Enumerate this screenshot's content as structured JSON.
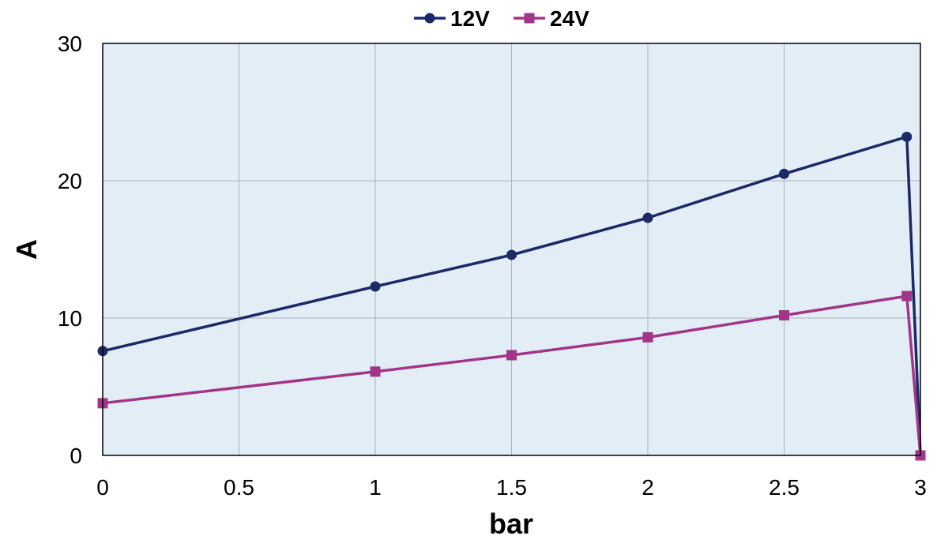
{
  "chart_data": {
    "type": "line",
    "title": "",
    "xlabel": "bar",
    "ylabel": "A",
    "xlim": [
      0,
      3
    ],
    "ylim": [
      0,
      30
    ],
    "x_ticks": [
      0,
      0.5,
      1,
      1.5,
      2,
      2.5,
      3
    ],
    "y_ticks": [
      0,
      10,
      20,
      30
    ],
    "x_tick_labels": [
      "0",
      "0.5",
      "1",
      "1.5",
      "2",
      "2.5",
      "3"
    ],
    "y_tick_labels": [
      "0",
      "10",
      "20",
      "30"
    ],
    "grid": true,
    "legend_position": "top-center",
    "plot_background": "#e2edf5",
    "series": [
      {
        "name": "12V",
        "color": "#1b2a66",
        "marker": "circle",
        "points": [
          [
            0,
            7.6
          ],
          [
            1,
            12.3
          ],
          [
            1.5,
            14.6
          ],
          [
            2,
            17.3
          ],
          [
            2.5,
            20.5
          ],
          [
            2.95,
            23.2
          ],
          [
            3,
            0
          ]
        ]
      },
      {
        "name": "24V",
        "color": "#a23589",
        "marker": "square",
        "points": [
          [
            0,
            3.8
          ],
          [
            1,
            6.1
          ],
          [
            1.5,
            7.3
          ],
          [
            2,
            8.6
          ],
          [
            2.5,
            10.2
          ],
          [
            2.95,
            11.6
          ],
          [
            3,
            0
          ]
        ]
      }
    ]
  }
}
